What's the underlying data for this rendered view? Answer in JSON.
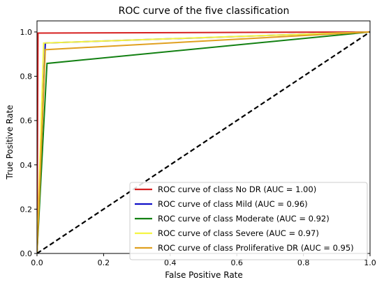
{
  "chart_data": {
    "type": "line",
    "title": "ROC curve of the five classification",
    "xlabel": "False Positive Rate",
    "ylabel": "True Positive Rate",
    "xlim": [
      0.0,
      1.0
    ],
    "ylim": [
      0.0,
      1.05
    ],
    "xticks": [
      0.0,
      0.2,
      0.4,
      0.6,
      0.8,
      1.0
    ],
    "yticks": [
      0.0,
      0.2,
      0.4,
      0.6,
      0.8,
      1.0
    ],
    "xtick_labels": [
      "0.0",
      "0.2",
      "0.4",
      "0.6",
      "0.8",
      "1.0"
    ],
    "ytick_labels": [
      "0.0",
      "0.2",
      "0.4",
      "0.6",
      "0.8",
      "1.0"
    ],
    "grid": false,
    "legend_position": "lower-right",
    "series": [
      {
        "name": "ROC curve of class No DR (AUC = 1.00)",
        "color": "#d62020",
        "x": [
          0.0,
          0.003,
          1.0
        ],
        "y": [
          0.0,
          0.995,
          1.0
        ]
      },
      {
        "name": "ROC curve of class Mild (AUC = 0.96)",
        "color": "#1010c8",
        "x": [
          0.0,
          0.025,
          1.0
        ],
        "y": [
          0.0,
          0.95,
          1.0
        ]
      },
      {
        "name": "ROC curve of class Moderate (AUC = 0.92)",
        "color": "#128012",
        "x": [
          0.0,
          0.03,
          1.0
        ],
        "y": [
          0.0,
          0.858,
          1.0
        ]
      },
      {
        "name": "ROC curve of class Severe (AUC = 0.97)",
        "color": "#f5f542",
        "x": [
          0.0,
          0.02,
          1.0
        ],
        "y": [
          0.0,
          0.95,
          1.0
        ]
      },
      {
        "name": "ROC curve of class Proliferative DR (AUC = 0.95)",
        "color": "#e0a020",
        "x": [
          0.0,
          0.025,
          1.0
        ],
        "y": [
          0.0,
          0.92,
          1.0
        ]
      }
    ],
    "reference_line": {
      "color": "#000000",
      "style": "dashed",
      "x": [
        0.0,
        1.0
      ],
      "y": [
        0.0,
        1.0
      ]
    }
  }
}
